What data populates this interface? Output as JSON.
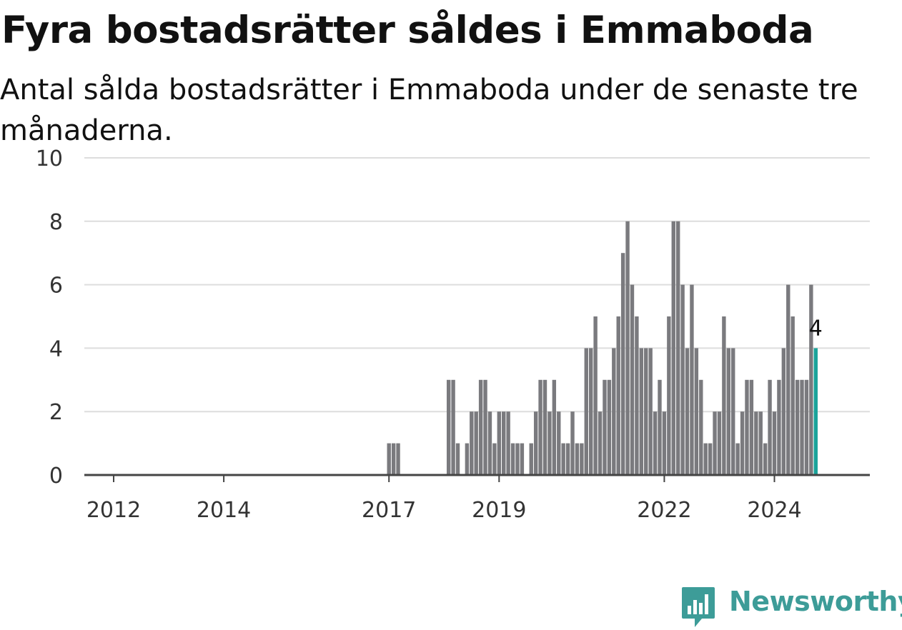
{
  "title": "Fyra bostadsrätter såldes i Emmaboda",
  "subtitle": "Antal sålda bostadsrätter i Emmaboda under de senaste tre månaderna.",
  "brand": {
    "name": "Newsworthy",
    "color": "#3d9c98",
    "icon": "newsworthy-logo-icon"
  },
  "colors": {
    "bar": "#7a7a7e",
    "highlight": "#1aa39a",
    "grid": "#dddddd",
    "axis": "#444444"
  },
  "chart_data": {
    "type": "bar",
    "title": "Fyra bostadsrätter såldes i Emmaboda",
    "subtitle": "Antal sålda bostadsrätter i Emmaboda under de senaste tre månaderna.",
    "xlabel": "",
    "ylabel": "",
    "ylim": [
      0,
      10
    ],
    "yticks": [
      0,
      2,
      4,
      6,
      8,
      10
    ],
    "xticks": [
      "2012",
      "2014",
      "2017",
      "2019",
      "2022",
      "2024"
    ],
    "grid": true,
    "highlight_label": "4",
    "categories": [
      "2011-07",
      "2011-08",
      "2011-09",
      "2011-10",
      "2011-11",
      "2011-12",
      "2012-01",
      "2012-02",
      "2012-03",
      "2012-04",
      "2012-05",
      "2012-06",
      "2012-07",
      "2012-08",
      "2012-09",
      "2012-10",
      "2012-11",
      "2012-12",
      "2013-01",
      "2013-02",
      "2013-03",
      "2013-04",
      "2013-05",
      "2013-06",
      "2013-07",
      "2013-08",
      "2013-09",
      "2013-10",
      "2013-11",
      "2013-12",
      "2014-01",
      "2014-02",
      "2014-03",
      "2014-04",
      "2014-05",
      "2014-06",
      "2014-07",
      "2014-08",
      "2014-09",
      "2014-10",
      "2014-11",
      "2014-12",
      "2015-01",
      "2015-02",
      "2015-03",
      "2015-04",
      "2015-05",
      "2015-06",
      "2015-07",
      "2015-08",
      "2015-09",
      "2015-10",
      "2015-11",
      "2015-12",
      "2016-01",
      "2016-02",
      "2016-03",
      "2016-04",
      "2016-05",
      "2016-06",
      "2016-07",
      "2016-08",
      "2016-09",
      "2016-10",
      "2016-11",
      "2016-12",
      "2017-01",
      "2017-02",
      "2017-03",
      "2017-04",
      "2017-05",
      "2017-06",
      "2017-07",
      "2017-08",
      "2017-09",
      "2017-10",
      "2017-11",
      "2017-12",
      "2018-01",
      "2018-02",
      "2018-03",
      "2018-04",
      "2018-05",
      "2018-06",
      "2018-07",
      "2018-08",
      "2018-09",
      "2018-10",
      "2018-11",
      "2018-12",
      "2019-01",
      "2019-02",
      "2019-03",
      "2019-04",
      "2019-05",
      "2019-06",
      "2019-07",
      "2019-08",
      "2019-09",
      "2019-10",
      "2019-11",
      "2019-12",
      "2020-01",
      "2020-02",
      "2020-03",
      "2020-04",
      "2020-05",
      "2020-06",
      "2020-07",
      "2020-08",
      "2020-09",
      "2020-10",
      "2020-11",
      "2020-12",
      "2021-01",
      "2021-02",
      "2021-03",
      "2021-04",
      "2021-05",
      "2021-06",
      "2021-07",
      "2021-08",
      "2021-09",
      "2021-10",
      "2021-11",
      "2021-12",
      "2022-01",
      "2022-02",
      "2022-03",
      "2022-04",
      "2022-05",
      "2022-06",
      "2022-07",
      "2022-08",
      "2022-09",
      "2022-10",
      "2022-11",
      "2022-12",
      "2023-01",
      "2023-02",
      "2023-03",
      "2023-04",
      "2023-05",
      "2023-06",
      "2023-07",
      "2023-08",
      "2023-09",
      "2023-10",
      "2023-11",
      "2023-12",
      "2024-01",
      "2024-02",
      "2024-03",
      "2024-04",
      "2024-05",
      "2024-06",
      "2024-07",
      "2024-08",
      "2024-09",
      "2024-10"
    ],
    "values": [
      0,
      0,
      0,
      0,
      0,
      0,
      0,
      0,
      0,
      0,
      0,
      0,
      0,
      0,
      0,
      0,
      0,
      0,
      0,
      0,
      0,
      0,
      0,
      0,
      0,
      0,
      0,
      0,
      0,
      0,
      0,
      0,
      0,
      0,
      0,
      0,
      0,
      0,
      0,
      0,
      0,
      0,
      0,
      0,
      0,
      0,
      0,
      0,
      0,
      0,
      0,
      0,
      0,
      0,
      0,
      0,
      0,
      0,
      0,
      0,
      0,
      0,
      0,
      0,
      0,
      0,
      1,
      1,
      1,
      0,
      0,
      0,
      0,
      0,
      0,
      0,
      0,
      0,
      0,
      3,
      3,
      1,
      0,
      1,
      2,
      2,
      3,
      3,
      2,
      1,
      2,
      2,
      2,
      1,
      1,
      1,
      0,
      1,
      2,
      3,
      3,
      2,
      3,
      2,
      1,
      1,
      2,
      1,
      1,
      4,
      4,
      5,
      2,
      3,
      3,
      4,
      5,
      7,
      8,
      6,
      5,
      4,
      4,
      4,
      2,
      3,
      2,
      5,
      8,
      8,
      6,
      4,
      6,
      4,
      3,
      1,
      1,
      2,
      2,
      5,
      4,
      4,
      1,
      2,
      3,
      3,
      2,
      2,
      1,
      3,
      2,
      3,
      4,
      6,
      5,
      3,
      3,
      3,
      6,
      4
    ]
  }
}
